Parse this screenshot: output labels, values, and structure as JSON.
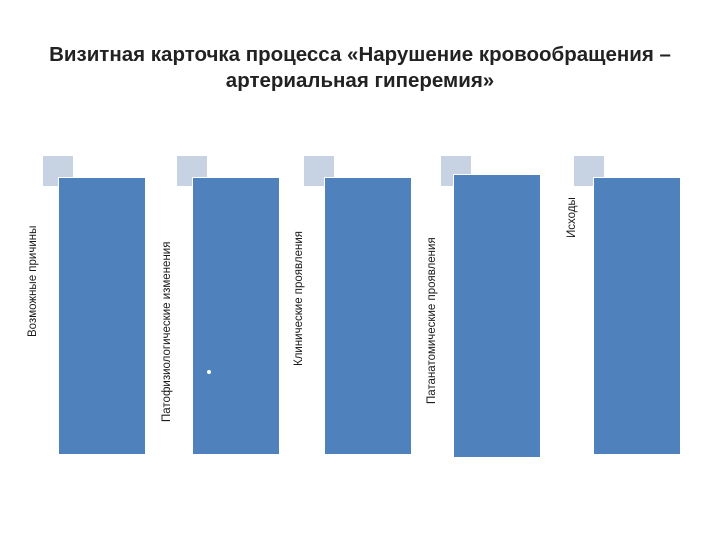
{
  "title": {
    "line1": "Визитная карточка процесса «Нарушение кровообращения –",
    "line2": "артериальная гиперемия»"
  },
  "colors": {
    "panel": "#4f81bd",
    "tab": "#c7d2e3",
    "text": "#222222"
  },
  "columns": [
    {
      "label": "Возможные причины"
    },
    {
      "label": "Патофизиологические изменения"
    },
    {
      "label": "Клинические проявления"
    },
    {
      "label": "Патанатомические проявления"
    },
    {
      "label": "Исходы"
    }
  ]
}
